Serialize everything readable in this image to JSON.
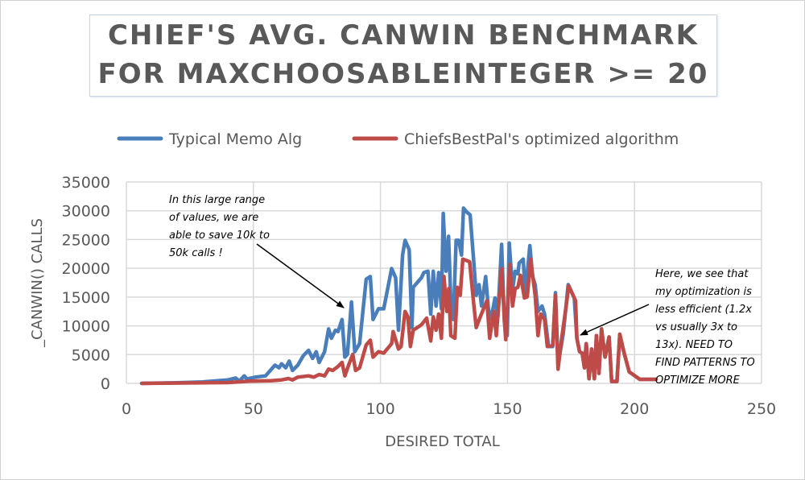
{
  "chart_data": {
    "type": "line",
    "title_lines": [
      "CHIEF'S AVG. CANWIN BENCHMARK",
      "FOR MAXCHOOSABLEINTEGER >= 20"
    ],
    "xlabel": "DESIRED TOTAL",
    "ylabel": "_CANWIN() CALLS",
    "xlim": [
      0,
      250
    ],
    "ylim": [
      0,
      35000
    ],
    "xticks": [
      0,
      50,
      100,
      150,
      200,
      250
    ],
    "yticks": [
      0,
      5000,
      10000,
      15000,
      20000,
      25000,
      30000,
      35000
    ],
    "grid": true,
    "legend_position": "top",
    "series": [
      {
        "name": "Typical Memo Alg",
        "color": "#4a7ebb",
        "points": [
          [
            6,
            0
          ],
          [
            20,
            100
          ],
          [
            30,
            250
          ],
          [
            40,
            600
          ],
          [
            43,
            930
          ],
          [
            44.5,
            400
          ],
          [
            46.4,
            1300
          ],
          [
            47.4,
            750
          ],
          [
            50.6,
            1070
          ],
          [
            54.8,
            1300
          ],
          [
            58.5,
            3170
          ],
          [
            60.1,
            2700
          ],
          [
            61.1,
            3400
          ],
          [
            62.7,
            2700
          ],
          [
            64.1,
            3870
          ],
          [
            65.4,
            2240
          ],
          [
            67.5,
            3170
          ],
          [
            69.6,
            4800
          ],
          [
            71.7,
            5740
          ],
          [
            73.3,
            4340
          ],
          [
            74.7,
            5500
          ],
          [
            75.9,
            3640
          ],
          [
            78,
            5500
          ],
          [
            79.6,
            9470
          ],
          [
            80.7,
            7840
          ],
          [
            82.3,
            9240
          ],
          [
            83.3,
            9000
          ],
          [
            84.9,
            11100
          ],
          [
            86,
            4570
          ],
          [
            87,
            5040
          ],
          [
            88.6,
            14140
          ],
          [
            89.9,
            5500
          ],
          [
            91.8,
            6900
          ],
          [
            94.4,
            18100
          ],
          [
            96,
            18570
          ],
          [
            97.1,
            11100
          ],
          [
            99.2,
            12970
          ],
          [
            101.3,
            12970
          ],
          [
            104.4,
            19970
          ],
          [
            106,
            18340
          ],
          [
            107.1,
            9240
          ],
          [
            108.7,
            22300
          ],
          [
            109.7,
            24870
          ],
          [
            111.3,
            23240
          ],
          [
            112.4,
            9700
          ],
          [
            112.9,
            16700
          ],
          [
            116.1,
            18340
          ],
          [
            117.1,
            19270
          ],
          [
            118.7,
            19500
          ],
          [
            119.8,
            12040
          ],
          [
            120.8,
            19500
          ],
          [
            121.9,
            13440
          ],
          [
            122.9,
            19270
          ],
          [
            124,
            12970
          ],
          [
            124.7,
            29540
          ],
          [
            125.8,
            19500
          ],
          [
            126.8,
            25570
          ],
          [
            127.7,
            14370
          ],
          [
            128.7,
            11100
          ],
          [
            129.8,
            24870
          ],
          [
            130.8,
            24870
          ],
          [
            131.9,
            22300
          ],
          [
            132.7,
            30470
          ],
          [
            134,
            29770
          ],
          [
            135.3,
            29300
          ],
          [
            136.7,
            21370
          ],
          [
            137.7,
            15300
          ],
          [
            138.8,
            17170
          ],
          [
            139.8,
            13440
          ],
          [
            141.4,
            18570
          ],
          [
            142.5,
            12970
          ],
          [
            143.5,
            11100
          ],
          [
            145.1,
            14840
          ],
          [
            146.2,
            11570
          ],
          [
            147.7,
            24170
          ],
          [
            148.8,
            10640
          ],
          [
            149.9,
            8300
          ],
          [
            150.7,
            24400
          ],
          [
            152,
            16240
          ],
          [
            153,
            19500
          ],
          [
            154.1,
            19040
          ],
          [
            154.6,
            20900
          ],
          [
            156.2,
            21600
          ],
          [
            157,
            15300
          ],
          [
            158.8,
            23940
          ],
          [
            159.9,
            18570
          ],
          [
            160.9,
            17170
          ],
          [
            162,
            12500
          ],
          [
            163.6,
            13440
          ],
          [
            164.6,
            12040
          ],
          [
            166.2,
            6400
          ],
          [
            167.8,
            6400
          ],
          [
            168.9,
            15770
          ],
          [
            169.9,
            3170
          ],
          [
            172,
            8770
          ],
          [
            173.9,
            17170
          ],
          [
            176.3,
            14840
          ],
          [
            177.3,
            7840
          ],
          [
            178.4,
            5500
          ],
          [
            179.4,
            5270
          ],
          [
            180.3,
            2700
          ],
          [
            181,
            6900
          ],
          [
            182.1,
            800
          ],
          [
            183.1,
            5970
          ],
          [
            184.2,
            800
          ],
          [
            185,
            8300
          ],
          [
            186,
            1730
          ],
          [
            187,
            9470
          ],
          [
            188.4,
            4570
          ],
          [
            190,
            8070
          ],
          [
            191,
            330
          ],
          [
            193.1,
            330
          ],
          [
            194.2,
            8540
          ],
          [
            195.8,
            5500
          ],
          [
            197.9,
            2000
          ],
          [
            202.1,
            700
          ],
          [
            208.5,
            700
          ]
        ]
      },
      {
        "name": "ChiefsBestPal's optimized algorithm",
        "color": "#be4b48",
        "points": [
          [
            6.2,
            0
          ],
          [
            40,
            140
          ],
          [
            48.5,
            373
          ],
          [
            56.9,
            467
          ],
          [
            61.1,
            607
          ],
          [
            63.8,
            840
          ],
          [
            65.4,
            607
          ],
          [
            67.5,
            1073
          ],
          [
            71.7,
            1307
          ],
          [
            73.8,
            1073
          ],
          [
            75.9,
            1540
          ],
          [
            78,
            1307
          ],
          [
            79.6,
            2473
          ],
          [
            81.2,
            2240
          ],
          [
            83.3,
            2940
          ],
          [
            84.9,
            3640
          ],
          [
            86,
            1307
          ],
          [
            87.5,
            3173
          ],
          [
            89.1,
            5040
          ],
          [
            90.2,
            2240
          ],
          [
            91.8,
            2707
          ],
          [
            94.4,
            6673
          ],
          [
            96,
            7500
          ],
          [
            97.1,
            4570
          ],
          [
            99.2,
            5500
          ],
          [
            101.3,
            5270
          ],
          [
            104.4,
            6900
          ],
          [
            105,
            9000
          ],
          [
            107.1,
            5970
          ],
          [
            108.1,
            6400
          ],
          [
            109.7,
            12500
          ],
          [
            110.8,
            11570
          ],
          [
            111.8,
            6400
          ],
          [
            112.9,
            9240
          ],
          [
            116.1,
            10170
          ],
          [
            118.2,
            11340
          ],
          [
            119.8,
            7370
          ],
          [
            120.8,
            11570
          ],
          [
            121.9,
            9240
          ],
          [
            122.9,
            12040
          ],
          [
            124,
            7840
          ],
          [
            125,
            18570
          ],
          [
            126.1,
            12500
          ],
          [
            126.9,
            16470
          ],
          [
            127.7,
            8300
          ],
          [
            129.3,
            7840
          ],
          [
            130.3,
            16700
          ],
          [
            131.4,
            15300
          ],
          [
            132.4,
            21600
          ],
          [
            135.1,
            21140
          ],
          [
            136.7,
            13900
          ],
          [
            137.7,
            9700
          ],
          [
            139.3,
            11570
          ],
          [
            141.9,
            14370
          ],
          [
            143,
            7840
          ],
          [
            144.6,
            12500
          ],
          [
            145.6,
            8300
          ],
          [
            147.7,
            19970
          ],
          [
            148.8,
            10970
          ],
          [
            149.3,
            7600
          ],
          [
            150.9,
            20670
          ],
          [
            152,
            13440
          ],
          [
            153,
            16470
          ],
          [
            154.1,
            16700
          ],
          [
            155.1,
            18800
          ],
          [
            156.7,
            14840
          ],
          [
            157.8,
            15070
          ],
          [
            159.1,
            21600
          ],
          [
            160.9,
            15300
          ],
          [
            162,
            8300
          ],
          [
            163.1,
            12040
          ],
          [
            164.6,
            11100
          ],
          [
            165.7,
            6400
          ],
          [
            167.8,
            6600
          ],
          [
            168.9,
            15300
          ],
          [
            169.9,
            2470
          ],
          [
            171.2,
            7370
          ],
          [
            173.1,
            13440
          ],
          [
            174.1,
            16940
          ],
          [
            176.8,
            14370
          ],
          [
            177.3,
            7840
          ],
          [
            178.4,
            5500
          ],
          [
            179.4,
            5270
          ],
          [
            180.3,
            2700
          ],
          [
            181,
            6900
          ],
          [
            182.1,
            800
          ],
          [
            183.1,
            5970
          ],
          [
            184.2,
            800
          ],
          [
            185,
            8300
          ],
          [
            186,
            1730
          ],
          [
            187,
            9470
          ],
          [
            188.4,
            4570
          ],
          [
            190,
            8070
          ],
          [
            191,
            330
          ],
          [
            193.1,
            330
          ],
          [
            194.2,
            8540
          ],
          [
            195.8,
            5500
          ],
          [
            197.9,
            2000
          ],
          [
            202.1,
            700
          ],
          [
            208.5,
            700
          ]
        ]
      }
    ],
    "annotations": [
      {
        "lines": [
          "In this large range",
          "of values, we are",
          "able to save 10k to",
          "50k calls !"
        ]
      },
      {
        "lines": [
          "Here, we see that",
          "my optimization is",
          "less efficient (1.2x",
          "vs usually 3x to",
          "13x). NEED TO",
          "FIND PATTERNS TO",
          "OPTIMIZE MORE"
        ]
      }
    ]
  }
}
